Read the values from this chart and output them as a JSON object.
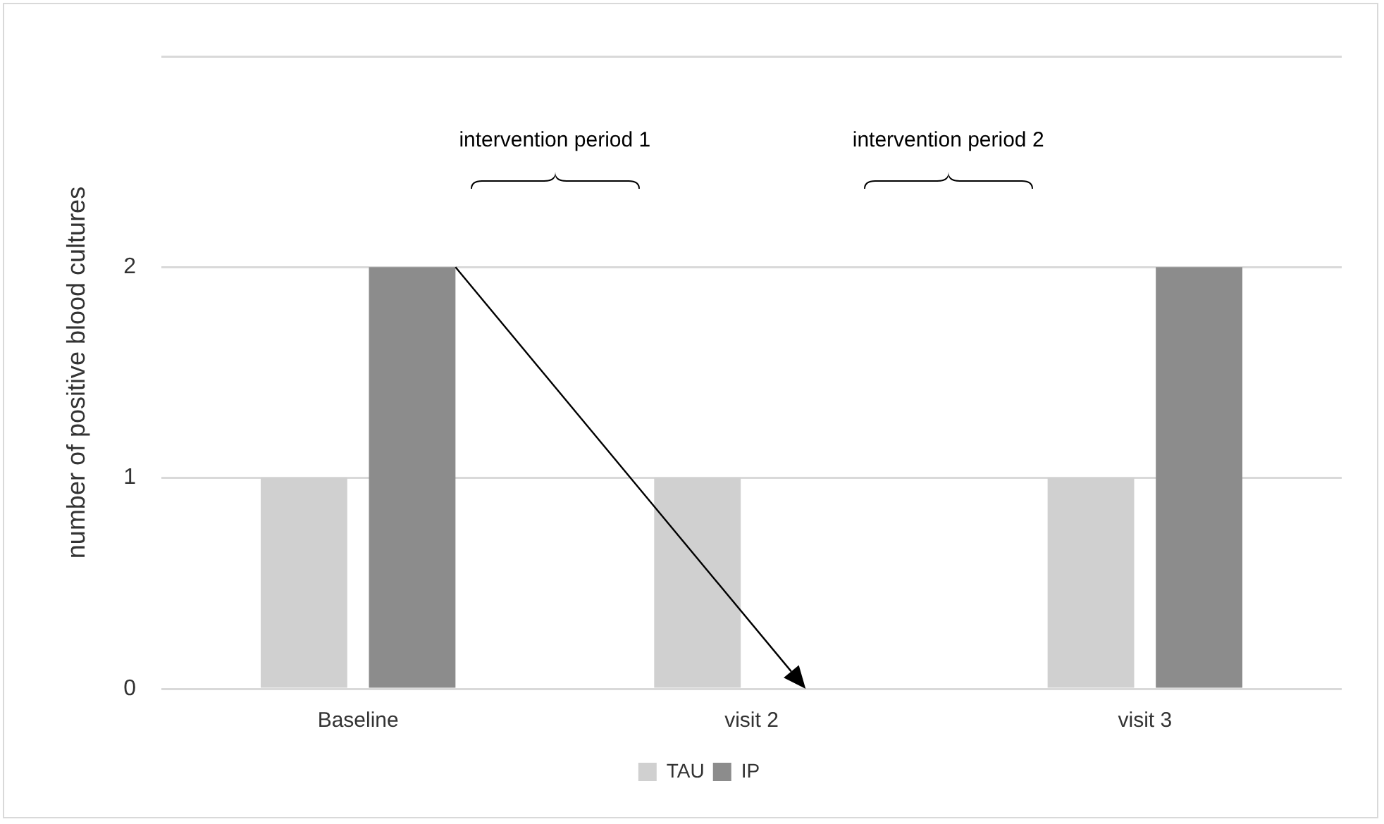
{
  "chart_data": {
    "type": "bar",
    "ylabel": "number of positive blood cultures",
    "categories": [
      "Baseline",
      "visit 2",
      "visit 3"
    ],
    "series": [
      {
        "name": "TAU",
        "color": "#d0d0d0",
        "values": [
          1,
          1,
          1
        ]
      },
      {
        "name": "IP",
        "color": "#8c8c8c",
        "values": [
          2,
          0,
          2
        ]
      }
    ],
    "ylim": [
      0,
      3
    ],
    "yticks": [
      0,
      1,
      2,
      {
        "value": 3,
        "label": null
      }
    ],
    "grid": "y",
    "legend": "bottom",
    "annotations": [
      "intervention period 1",
      "intervention period 2"
    ]
  }
}
